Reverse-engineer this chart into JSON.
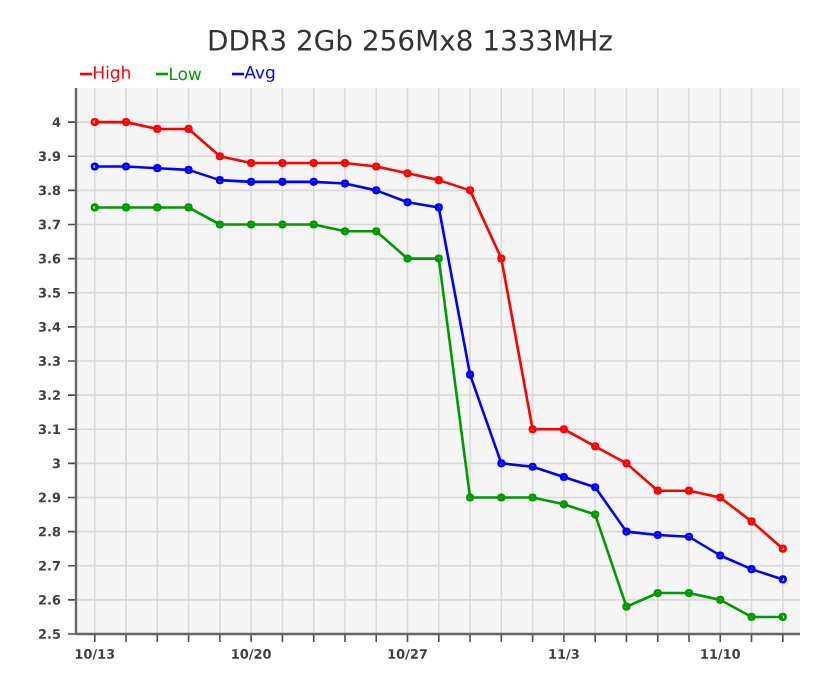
{
  "chart_data": {
    "type": "line",
    "title": "DDR3 2Gb 256Mx8 1333MHz",
    "categories": [
      "10/13",
      null,
      null,
      null,
      null,
      "10/20",
      null,
      null,
      null,
      null,
      "10/27",
      null,
      null,
      null,
      null,
      "11/3",
      null,
      null,
      null,
      null,
      "11/10",
      null,
      null
    ],
    "series": [
      {
        "name": "High",
        "color": "#ff0000",
        "values": [
          4.0,
          4.0,
          3.98,
          3.98,
          3.9,
          3.88,
          3.88,
          3.88,
          3.88,
          3.87,
          3.85,
          3.83,
          3.8,
          3.6,
          3.1,
          3.1,
          3.05,
          3.0,
          2.92,
          2.92,
          2.9,
          2.83,
          2.75
        ]
      },
      {
        "name": "Low",
        "color": "#009900",
        "values": [
          3.75,
          3.75,
          3.75,
          3.75,
          3.7,
          3.7,
          3.7,
          3.7,
          3.68,
          3.68,
          3.6,
          3.6,
          2.9,
          2.9,
          2.9,
          2.88,
          2.85,
          2.58,
          2.62,
          2.62,
          2.6,
          2.55,
          2.55
        ]
      },
      {
        "name": "Avg",
        "color": "#0000ff",
        "values": [
          3.87,
          3.87,
          3.865,
          3.86,
          3.83,
          3.825,
          3.825,
          3.825,
          3.82,
          3.8,
          3.765,
          3.75,
          3.26,
          3.0,
          2.99,
          2.96,
          2.93,
          2.8,
          2.79,
          2.785,
          2.73,
          2.69,
          2.66
        ]
      }
    ],
    "ylim": [
      2.5,
      4.1
    ],
    "yticks": [
      2.5,
      2.6,
      2.7,
      2.8,
      2.9,
      3,
      3.1,
      3.2,
      3.3,
      3.4,
      3.5,
      3.6,
      3.7,
      3.8,
      3.9,
      4
    ],
    "grid": true,
    "legend": "top left",
    "marker": "circle",
    "line_style": "solid"
  }
}
